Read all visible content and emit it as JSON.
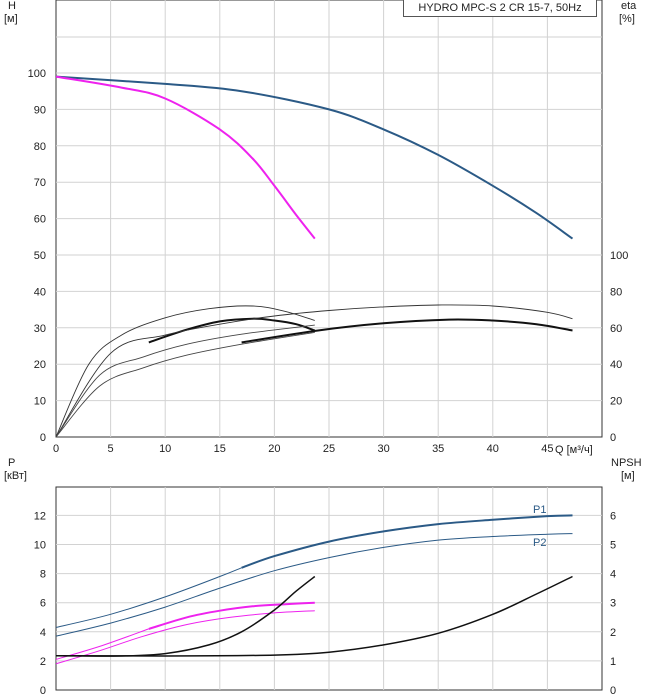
{
  "chart_data": [
    {
      "type": "line",
      "title": "HYDRO MPC-S 2 CR 15-7, 50Hz",
      "xlabel": "Q [м³/ч]",
      "ylabel_left": "H",
      "ylabel_left_unit": "[м]",
      "ylabel_right": "eta",
      "ylabel_right_unit": "[%]",
      "xlim": [
        0,
        50
      ],
      "ylim_left": [
        0,
        110
      ],
      "ylim_right": [
        0,
        220
      ],
      "x_ticks": [
        "0",
        "5",
        "10",
        "15",
        "20",
        "25",
        "30",
        "35",
        "40",
        "45"
      ],
      "y_ticks_left": [
        "0",
        "10",
        "20",
        "30",
        "40",
        "50",
        "60",
        "70",
        "80",
        "90",
        "100"
      ],
      "y_ticks_right": [
        "0",
        "20",
        "40",
        "60",
        "80",
        "100"
      ],
      "series": [
        {
          "name": "H two pumps",
          "color": "#2b5a86",
          "axis": "left",
          "x": [
            0,
            10,
            17,
            25,
            30,
            35,
            40,
            44,
            47.3
          ],
          "y": [
            99,
            97,
            95,
            90,
            84.5,
            77.5,
            69,
            61.5,
            54.5
          ]
        },
        {
          "name": "H one pump",
          "color": "#ee22ee",
          "axis": "left",
          "x": [
            0,
            6,
            10,
            15,
            18,
            20,
            22,
            23.7
          ],
          "y": [
            99,
            96,
            93,
            84.5,
            76.5,
            69,
            61,
            54.5
          ]
        },
        {
          "name": "eta two pumps",
          "color": "#111111",
          "axis": "right",
          "x": [
            17,
            24,
            30,
            36,
            40,
            44,
            47.3
          ],
          "y": [
            52,
            58.5,
            62.5,
            64.5,
            64,
            62,
            58.5
          ]
        },
        {
          "name": "eta one pump",
          "color": "#111111",
          "axis": "right",
          "x": [
            8.5,
            12,
            15,
            18,
            20,
            22,
            23.7
          ],
          "y": [
            52,
            59,
            63.5,
            65,
            64,
            62,
            58.5
          ]
        },
        {
          "name": "eta envelope",
          "color": "#333333",
          "axis": "right",
          "x": [
            0,
            5,
            10,
            15,
            20,
            25,
            30,
            35,
            40,
            45,
            47.3
          ],
          "y": [
            0,
            46,
            56,
            62,
            66.5,
            69.5,
            71.5,
            72.5,
            72,
            68.5,
            65
          ]
        },
        {
          "name": "eta one pump envelope",
          "color": "#333333",
          "axis": "right",
          "x": [
            0,
            3,
            6,
            10,
            14,
            18,
            21,
            23.7
          ],
          "y": [
            0,
            40,
            56,
            65.5,
            70.5,
            72,
            69,
            64
          ]
        },
        {
          "name": "eta lower bound",
          "color": "#444444",
          "axis": "right",
          "x": [
            0,
            4,
            8,
            12,
            17,
            23.7
          ],
          "y": [
            0,
            28,
            38,
            45,
            51,
            57.5
          ]
        },
        {
          "name": "eta lower bound 2",
          "color": "#444444",
          "axis": "right",
          "x": [
            0,
            4,
            8,
            12,
            17,
            23.7
          ],
          "y": [
            0,
            34,
            44,
            51,
            56.5,
            61.5
          ]
        }
      ]
    },
    {
      "type": "line",
      "xlim": [
        0,
        50
      ],
      "ylabel_left": "P",
      "ylabel_left_unit": "[кВт]",
      "ylabel_right": "NPSH",
      "ylabel_right_unit": "[м]",
      "ylim_left": [
        0,
        14
      ],
      "ylim_right": [
        0,
        7
      ],
      "y_ticks_left": [
        "0",
        "2",
        "4",
        "6",
        "8",
        "10",
        "12"
      ],
      "y_ticks_right": [
        "0",
        "1",
        "2",
        "3",
        "4",
        "5",
        "6"
      ],
      "labels": {
        "p1": "P1",
        "p2": "P2"
      },
      "series": [
        {
          "name": "P1 two pumps",
          "color": "#2b5a86",
          "axis": "left",
          "width": 2,
          "x": [
            17,
            20,
            25,
            30,
            35,
            40,
            45,
            47.3
          ],
          "y": [
            8.4,
            9.2,
            10.2,
            10.9,
            11.4,
            11.7,
            11.95,
            12.0
          ]
        },
        {
          "name": "P1 two pumps extension",
          "color": "#2b5a86",
          "axis": "left",
          "width": 1,
          "x": [
            0,
            5,
            10,
            15,
            17
          ],
          "y": [
            4.3,
            5.2,
            6.4,
            7.8,
            8.4
          ]
        },
        {
          "name": "P2 two pumps",
          "color": "#2b5a86",
          "axis": "left",
          "width": 1,
          "x": [
            0,
            5,
            10,
            15,
            20,
            25,
            30,
            35,
            40,
            45,
            47.3
          ],
          "y": [
            3.7,
            4.6,
            5.7,
            7.0,
            8.2,
            9.1,
            9.8,
            10.3,
            10.55,
            10.7,
            10.75
          ]
        },
        {
          "name": "P1 one pump",
          "color": "#ee22ee",
          "axis": "left",
          "width": 2,
          "x": [
            8.5,
            12,
            15,
            18,
            21,
            23.7
          ],
          "y": [
            4.2,
            5.0,
            5.45,
            5.75,
            5.9,
            6.0
          ]
        },
        {
          "name": "P1 one pump extension",
          "color": "#ee22ee",
          "axis": "left",
          "width": 1,
          "x": [
            0,
            4,
            8.5
          ],
          "y": [
            2.1,
            3.0,
            4.2
          ]
        },
        {
          "name": "P2 one pump",
          "color": "#ee22ee",
          "axis": "left",
          "width": 1,
          "x": [
            0,
            4,
            8,
            12,
            16,
            20,
            23.7
          ],
          "y": [
            1.8,
            2.7,
            3.7,
            4.5,
            5.0,
            5.3,
            5.45
          ]
        },
        {
          "name": "NPSH one pump",
          "color": "#111111",
          "axis": "right",
          "width": 1.5,
          "x": [
            0,
            6,
            10,
            14,
            17,
            20,
            22,
            23.7
          ],
          "y": [
            1.18,
            1.17,
            1.25,
            1.55,
            2.0,
            2.75,
            3.4,
            3.9
          ]
        },
        {
          "name": "NPSH two pumps",
          "color": "#111111",
          "axis": "right",
          "width": 1.5,
          "x": [
            0,
            10,
            20,
            25,
            30,
            35,
            40,
            44,
            47.3
          ],
          "y": [
            1.18,
            1.17,
            1.2,
            1.3,
            1.55,
            1.95,
            2.6,
            3.3,
            3.9
          ]
        }
      ]
    }
  ]
}
